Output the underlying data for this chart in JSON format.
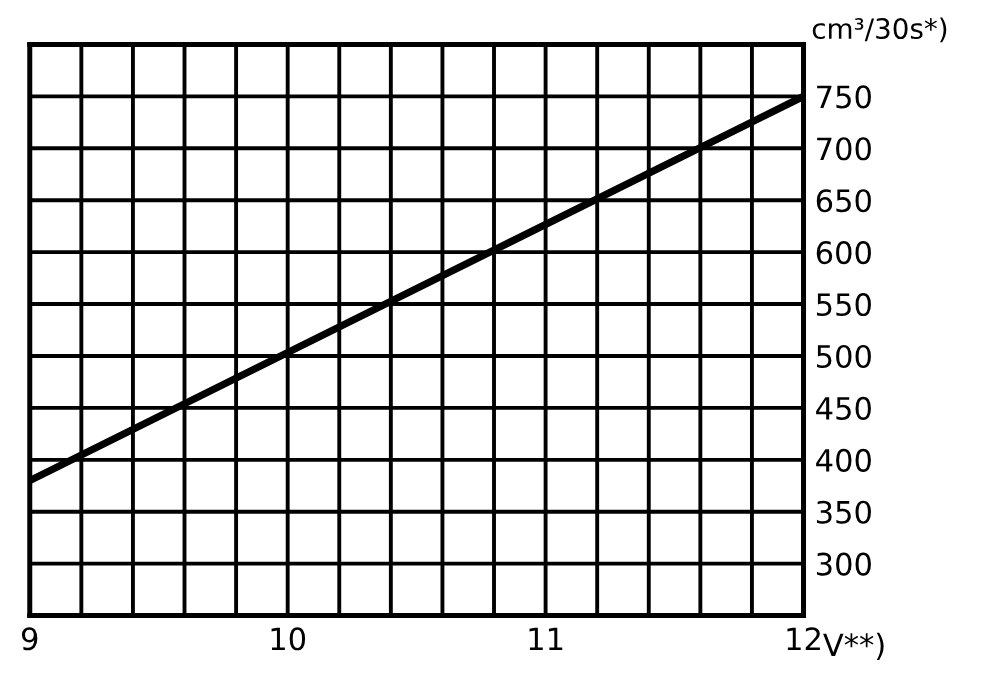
{
  "chart_data": {
    "type": "line",
    "x": [
      9,
      12
    ],
    "series": [
      {
        "color": "#000000",
        "values": [
          380,
          750
        ]
      }
    ],
    "xlabel": "V**)",
    "ylabel": "cm³/30s*)",
    "xlim": [
      9,
      12
    ],
    "xticks": [
      9,
      {
        "value": 9.2,
        "label": null
      },
      {
        "value": 9.4,
        "label": null
      },
      {
        "value": 9.6,
        "label": null
      },
      {
        "value": 9.8,
        "label": null
      },
      10,
      {
        "value": 10.2,
        "label": null
      },
      {
        "value": 10.4,
        "label": null
      },
      {
        "value": 10.6,
        "label": null
      },
      {
        "value": 10.8,
        "label": null
      },
      11,
      {
        "value": 11.2,
        "label": null
      },
      {
        "value": 11.4,
        "label": null
      },
      {
        "value": 11.6,
        "label": null
      },
      {
        "value": 11.8,
        "label": null
      },
      12
    ],
    "ylim": [
      250,
      800
    ],
    "yticks": [
      300,
      350,
      400,
      450,
      500,
      550,
      600,
      650,
      700,
      750
    ],
    "grid": true,
    "marker": "none",
    "line_style": "solid"
  }
}
